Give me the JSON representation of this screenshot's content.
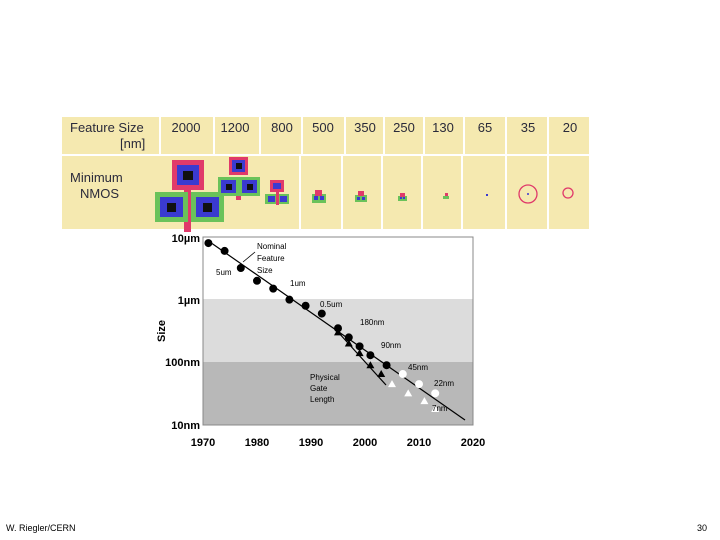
{
  "slide": {
    "footer_left": "W. Riegler/CERN",
    "page_number": "30"
  },
  "table": {
    "row1_label": [
      "Feature Size",
      "[nm]"
    ],
    "row2_label": [
      "Minimum",
      "NMOS"
    ],
    "feature_sizes": [
      "2000",
      "1200",
      "800",
      "500",
      "350",
      "250",
      "130",
      "65",
      "35",
      "20"
    ],
    "background_color": "#f5e9b0",
    "grid_color": "#ffffff"
  },
  "chart_data": {
    "type": "scatter",
    "ylabel": "Size",
    "xlabel": "",
    "x_ticks": [
      "1970",
      "1980",
      "1990",
      "2000",
      "2010",
      "2020"
    ],
    "xlim": [
      1970,
      2020
    ],
    "y_ticks": [
      "10µm",
      "1µm",
      "100nm",
      "10nm"
    ],
    "y_scale": "log",
    "ylim_nm": [
      10,
      10000
    ],
    "series": [
      {
        "name": "Nominal Feature Size",
        "marker": "circle",
        "x": [
          1971,
          1974,
          1977,
          1980,
          1983,
          1986,
          1989,
          1992,
          1995,
          1997,
          1999,
          2001,
          2004,
          2007,
          2010,
          2013
        ],
        "y": [
          8000,
          6000,
          3200,
          2000,
          1500,
          1000,
          800,
          600,
          350,
          250,
          180,
          130,
          90,
          65,
          45,
          32
        ]
      },
      {
        "name": "Physical Gate Length",
        "marker": "triangle",
        "x": [
          1995,
          1997,
          1999,
          2001,
          2003,
          2005,
          2008,
          2011,
          2013
        ],
        "y": [
          300,
          200,
          140,
          90,
          65,
          45,
          32,
          24,
          18
        ]
      }
    ],
    "annotations": [
      "Nominal",
      "Feature",
      "Size",
      "5um",
      "1um",
      "0.5um",
      "180nm",
      "90nm",
      "45nm",
      "22nm",
      "7nm",
      "Physical",
      "Gate",
      "Length"
    ],
    "shading": [
      {
        "from_nm": 10,
        "to_nm": 100,
        "color": "#b8b8b8"
      },
      {
        "from_nm": 100,
        "to_nm": 1000,
        "color": "#dcdcdc"
      }
    ]
  }
}
